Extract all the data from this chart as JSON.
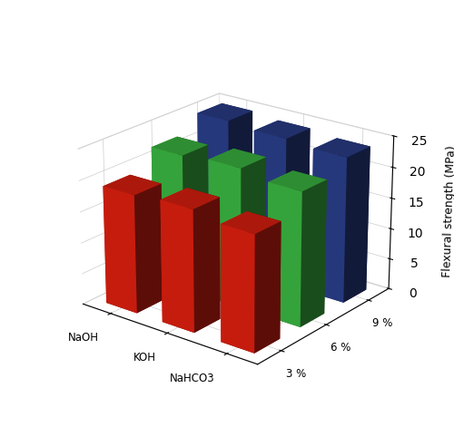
{
  "title": "",
  "zlabel": "Flexural strength (MPa)",
  "x_labels": [
    "NaOH",
    "KOH",
    "NaHCO3"
  ],
  "y_labels": [
    "3 %",
    "6 %",
    "9 %"
  ],
  "values": [
    [
      19.0,
      19.5,
      18.5
    ],
    [
      22.0,
      22.5,
      21.5
    ],
    [
      24.5,
      24.0,
      23.5
    ]
  ],
  "bar_colors": [
    "#e02010",
    "#3cb843",
    "#2b3f8c"
  ],
  "ylim": [
    0,
    25
  ],
  "yticks": [
    0,
    5,
    10,
    15,
    20,
    25
  ],
  "figsize": [
    5.0,
    4.92
  ],
  "dpi": 100,
  "elev": 22,
  "azim": -52,
  "bar_width": 0.55,
  "bar_depth": 0.55
}
